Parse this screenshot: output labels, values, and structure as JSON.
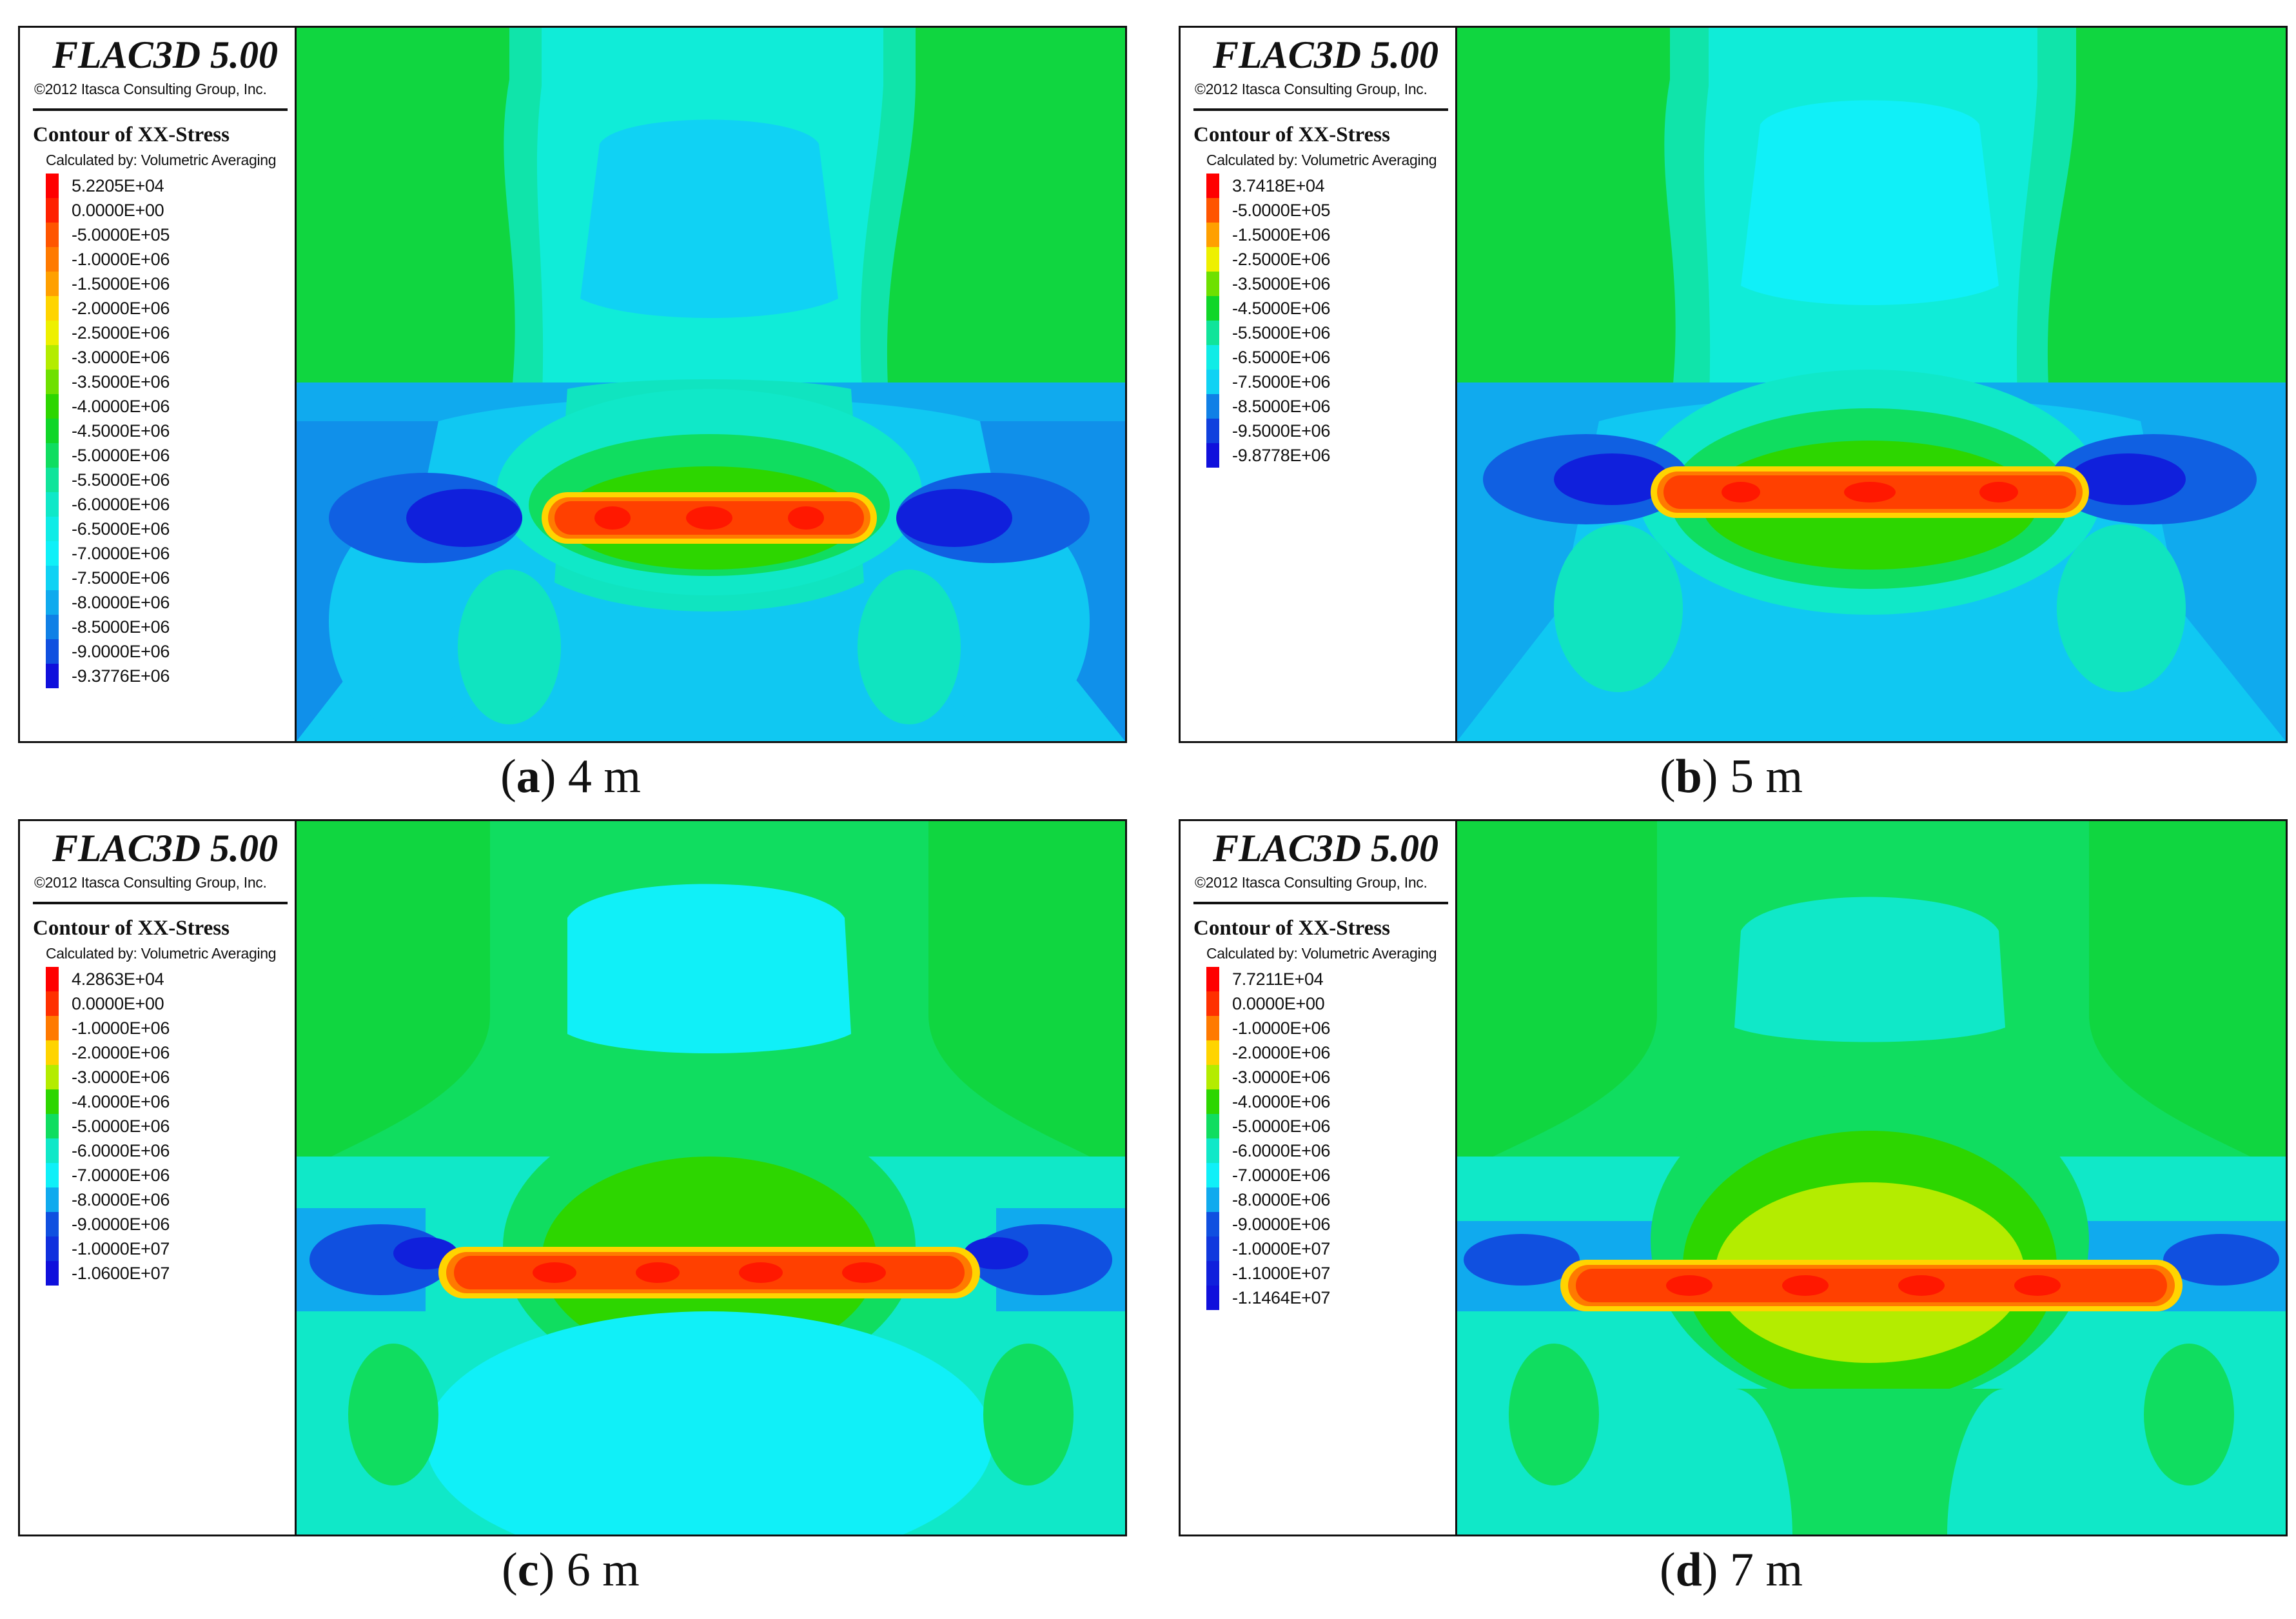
{
  "panels": [
    {
      "id": "a",
      "letter": "a",
      "spacing": "4 m",
      "brand": "FLAC3D 5.00",
      "copyright": "©2012 Itasca Consulting Group, Inc.",
      "legend_title": "Contour of XX-Stress",
      "legend_subtitle": "Calculated by: Volumetric Averaging",
      "legend": [
        {
          "label": "5.2205E+04",
          "color": "#ff0000"
        },
        {
          "label": "0.0000E+00",
          "color": "#ff2000"
        },
        {
          "label": "-5.0000E+05",
          "color": "#ff5500"
        },
        {
          "label": "-1.0000E+06",
          "color": "#ff7a00"
        },
        {
          "label": "-1.5000E+06",
          "color": "#ffa000"
        },
        {
          "label": "-2.0000E+06",
          "color": "#ffd400"
        },
        {
          "label": "-2.5000E+06",
          "color": "#eef000"
        },
        {
          "label": "-3.0000E+06",
          "color": "#b4ec00"
        },
        {
          "label": "-3.5000E+06",
          "color": "#6ee000"
        },
        {
          "label": "-4.0000E+06",
          "color": "#2dd600"
        },
        {
          "label": "-4.5000E+06",
          "color": "#10d628"
        },
        {
          "label": "-5.0000E+06",
          "color": "#10dd60"
        },
        {
          "label": "-5.5000E+06",
          "color": "#10e49a"
        },
        {
          "label": "-6.0000E+06",
          "color": "#10e8c8"
        },
        {
          "label": "-6.5000E+06",
          "color": "#10ece6"
        },
        {
          "label": "-7.0000E+06",
          "color": "#10f0f8"
        },
        {
          "label": "-7.5000E+06",
          "color": "#10d2f4"
        },
        {
          "label": "-8.0000E+06",
          "color": "#10aaee"
        },
        {
          "label": "-8.5000E+06",
          "color": "#1080e6"
        },
        {
          "label": "-9.0000E+06",
          "color": "#1050e0"
        },
        {
          "label": "-9.3776E+06",
          "color": "#1010dc"
        }
      ]
    },
    {
      "id": "b",
      "letter": "b",
      "spacing": "5 m",
      "brand": "FLAC3D 5.00",
      "copyright": "©2012 Itasca Consulting Group, Inc.",
      "legend_title": "Contour of XX-Stress",
      "legend_subtitle": "Calculated by: Volumetric Averaging",
      "legend": [
        {
          "label": "3.7418E+04",
          "color": "#ff0000"
        },
        {
          "label": "-5.0000E+05",
          "color": "#ff5500"
        },
        {
          "label": "-1.5000E+06",
          "color": "#ffa000"
        },
        {
          "label": "-2.5000E+06",
          "color": "#eef000"
        },
        {
          "label": "-3.5000E+06",
          "color": "#6ee000"
        },
        {
          "label": "-4.5000E+06",
          "color": "#10d628"
        },
        {
          "label": "-5.5000E+06",
          "color": "#10e49a"
        },
        {
          "label": "-6.5000E+06",
          "color": "#10ece6"
        },
        {
          "label": "-7.5000E+06",
          "color": "#10d2f4"
        },
        {
          "label": "-8.5000E+06",
          "color": "#1080e6"
        },
        {
          "label": "-9.5000E+06",
          "color": "#1040de"
        },
        {
          "label": "-9.8778E+06",
          "color": "#1010dc"
        }
      ]
    },
    {
      "id": "c",
      "letter": "c",
      "spacing": "6 m",
      "brand": "FLAC3D 5.00",
      "copyright": "©2012 Itasca Consulting Group, Inc.",
      "legend_title": "Contour of XX-Stress",
      "legend_subtitle": "Calculated by: Volumetric Averaging",
      "legend": [
        {
          "label": "4.2863E+04",
          "color": "#ff0000"
        },
        {
          "label": "0.0000E+00",
          "color": "#ff3000"
        },
        {
          "label": "-1.0000E+06",
          "color": "#ff7a00"
        },
        {
          "label": "-2.0000E+06",
          "color": "#ffd400"
        },
        {
          "label": "-3.0000E+06",
          "color": "#b4ec00"
        },
        {
          "label": "-4.0000E+06",
          "color": "#2dd600"
        },
        {
          "label": "-5.0000E+06",
          "color": "#10dd60"
        },
        {
          "label": "-6.0000E+06",
          "color": "#10e8c8"
        },
        {
          "label": "-7.0000E+06",
          "color": "#10f0f8"
        },
        {
          "label": "-8.0000E+06",
          "color": "#10aaee"
        },
        {
          "label": "-9.0000E+06",
          "color": "#1050e0"
        },
        {
          "label": "-1.0000E+07",
          "color": "#1030de"
        },
        {
          "label": "-1.0600E+07",
          "color": "#1010dc"
        }
      ]
    },
    {
      "id": "d",
      "letter": "d",
      "spacing": "7 m",
      "brand": "FLAC3D 5.00",
      "copyright": "©2012 Itasca Consulting Group, Inc.",
      "legend_title": "Contour of XX-Stress",
      "legend_subtitle": "Calculated by: Volumetric Averaging",
      "legend": [
        {
          "label": "7.7211E+04",
          "color": "#ff0000"
        },
        {
          "label": "0.0000E+00",
          "color": "#ff3000"
        },
        {
          "label": "-1.0000E+06",
          "color": "#ff7a00"
        },
        {
          "label": "-2.0000E+06",
          "color": "#ffd400"
        },
        {
          "label": "-3.0000E+06",
          "color": "#b4ec00"
        },
        {
          "label": "-4.0000E+06",
          "color": "#2dd600"
        },
        {
          "label": "-5.0000E+06",
          "color": "#10dd60"
        },
        {
          "label": "-6.0000E+06",
          "color": "#10e8c8"
        },
        {
          "label": "-7.0000E+06",
          "color": "#10f0f8"
        },
        {
          "label": "-8.0000E+06",
          "color": "#10aaee"
        },
        {
          "label": "-9.0000E+06",
          "color": "#1050e0"
        },
        {
          "label": "-1.0000E+07",
          "color": "#1038de"
        },
        {
          "label": "-1.1000E+07",
          "color": "#1020dc"
        },
        {
          "label": "-1.1464E+07",
          "color": "#1010dc"
        }
      ]
    }
  ]
}
